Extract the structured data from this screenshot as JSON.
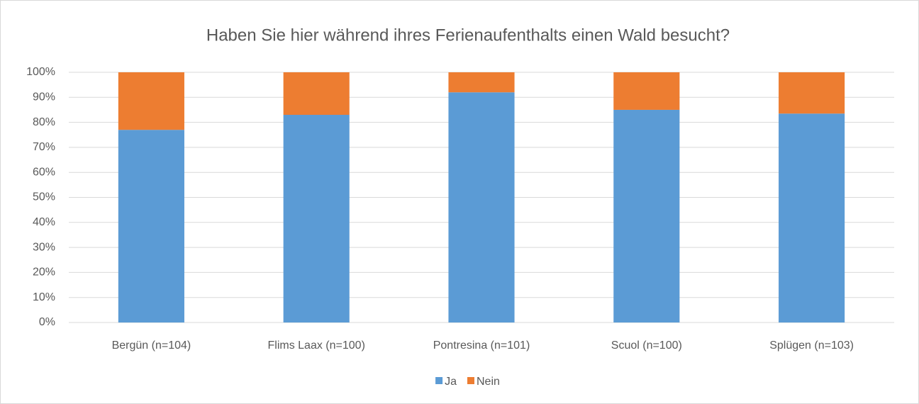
{
  "chart_data": {
    "type": "stacked_bar",
    "title": "Haben Sie hier während ihres Ferienaufenthalts einen Wald besucht?",
    "categories": [
      "Bergün (n=104)",
      "Flims Laax (n=100)",
      "Pontresina (n=101)",
      "Scuol (n=100)",
      "Splügen (n=103)"
    ],
    "series": [
      {
        "name": "Ja",
        "color": "#5b9bd5",
        "values": [
          77,
          83,
          92,
          85,
          83.5
        ]
      },
      {
        "name": "Nein",
        "color": "#ed7d31",
        "values": [
          23,
          17,
          8,
          15,
          16.5
        ]
      }
    ],
    "ylim": [
      0,
      100
    ],
    "yticks": [
      {
        "value": 0,
        "label": "0%"
      },
      {
        "value": 10,
        "label": "10%"
      },
      {
        "value": 20,
        "label": "20%"
      },
      {
        "value": 30,
        "label": "30%"
      },
      {
        "value": 40,
        "label": "40%"
      },
      {
        "value": 50,
        "label": "50%"
      },
      {
        "value": 60,
        "label": "60%"
      },
      {
        "value": 70,
        "label": "70%"
      },
      {
        "value": 80,
        "label": "80%"
      },
      {
        "value": 90,
        "label": "90%"
      },
      {
        "value": 100,
        "label": "100%"
      }
    ],
    "grid": true,
    "legend": "bottom"
  }
}
